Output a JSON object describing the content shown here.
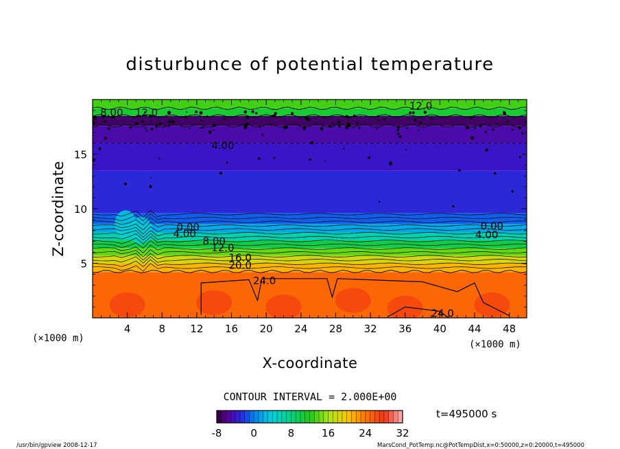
{
  "chart_data": {
    "type": "heatmap",
    "title": "disturbunce of potential temperature",
    "xlabel": "X-coordinate",
    "ylabel": "Z-coordinate",
    "x_unit": "(×1000 m)",
    "y_unit": "(×1000 m)",
    "xlim": [
      0,
      50
    ],
    "ylim": [
      0,
      20
    ],
    "x_ticks": [
      4,
      8,
      12,
      16,
      20,
      24,
      28,
      32,
      36,
      40,
      44,
      48
    ],
    "y_ticks": [
      5,
      10,
      15
    ],
    "layers": [
      {
        "z_bottom": 0,
        "z_top": 4.2,
        "value": 25
      },
      {
        "z_bottom": 4.2,
        "z_top": 5.0,
        "value": 21
      },
      {
        "z_bottom": 5.0,
        "z_top": 5.7,
        "value": 18
      },
      {
        "z_bottom": 5.7,
        "z_top": 6.4,
        "value": 14
      },
      {
        "z_bottom": 6.4,
        "z_top": 7.1,
        "value": 10
      },
      {
        "z_bottom": 7.1,
        "z_top": 7.8,
        "value": 6
      },
      {
        "z_bottom": 7.8,
        "z_top": 8.6,
        "value": 2
      },
      {
        "z_bottom": 8.6,
        "z_top": 9.6,
        "value": -1
      },
      {
        "z_bottom": 9.6,
        "z_top": 13.5,
        "value": -3
      },
      {
        "z_bottom": 13.5,
        "z_top": 16.0,
        "value": -4
      },
      {
        "z_bottom": 16.0,
        "z_top": 17.6,
        "value": -5
      },
      {
        "z_bottom": 17.6,
        "z_top": 18.5,
        "value": -7
      },
      {
        "z_bottom": 18.5,
        "z_top": 19.2,
        "value": 11
      },
      {
        "z_bottom": 19.2,
        "z_top": 20.0,
        "value": 13
      }
    ],
    "contour_labels": [
      {
        "text": "12.0",
        "x": 37.8,
        "z": 19.4
      },
      {
        "text": "12.0",
        "x": 6.2,
        "z": 18.8
      },
      {
        "text": "8.00",
        "x": 2.2,
        "z": 18.8
      },
      {
        "text": "4.00",
        "x": 15.0,
        "z": 15.8
      },
      {
        "text": "0.00",
        "x": 11.0,
        "z": 8.3
      },
      {
        "text": "4.00",
        "x": 10.6,
        "z": 7.7
      },
      {
        "text": "0.00",
        "x": 46.0,
        "z": 8.4
      },
      {
        "text": "4.00",
        "x": 45.4,
        "z": 7.6
      },
      {
        "text": "8.00",
        "x": 14.0,
        "z": 7.0
      },
      {
        "text": "12.0",
        "x": 15.0,
        "z": 6.4
      },
      {
        "text": "16.0",
        "x": 17.0,
        "z": 5.5
      },
      {
        "text": "20.0",
        "x": 17.0,
        "z": 4.8
      },
      {
        "text": "24.0",
        "x": 19.8,
        "z": 3.4
      },
      {
        "text": "24.0",
        "x": 40.3,
        "z": 0.4
      }
    ],
    "contour_interval": "CONTOUR INTERVAL = 2.000E+00",
    "colorbar": {
      "min": -8,
      "max": 32,
      "ticks": [
        "-8",
        "0",
        "8",
        "16",
        "24",
        "32"
      ]
    },
    "time_label": "t=495000 s"
  },
  "footer": {
    "left": "/usr/bin/gpview  2008-12-17",
    "right": "MarsCond_PotTemp.nc@PotTempDist,x=0:50000,z=0:20000,t=495000"
  }
}
